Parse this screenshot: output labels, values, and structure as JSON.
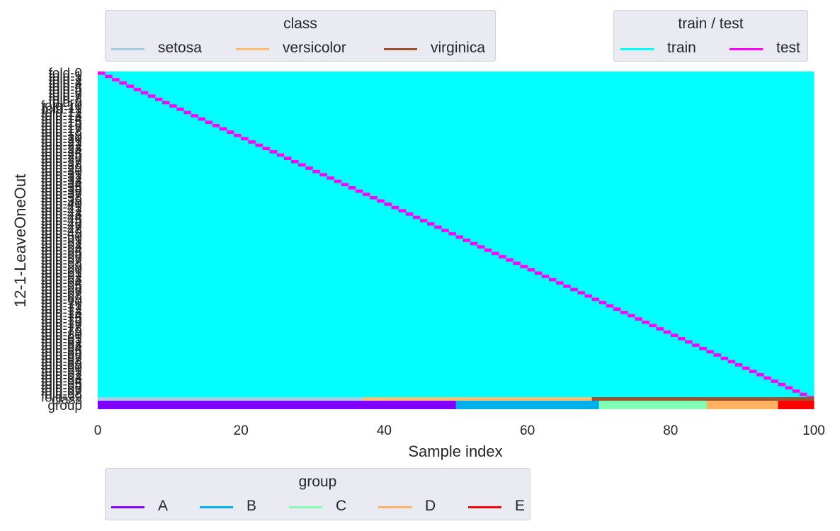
{
  "chart_data": {
    "type": "heatmap",
    "title": "",
    "xlabel": "Sample index",
    "ylabel": "12-1-LeaveOneOut",
    "xlim": [
      0,
      100
    ],
    "x_ticks": [
      0,
      20,
      40,
      60,
      80,
      100
    ],
    "grid": false,
    "n_samples": 100,
    "folds": {
      "count": 100,
      "label_prefix": "fold-",
      "test_index_per_fold": "fold i tests sample i (one sample left out per fold)",
      "colors": {
        "train": "#00ffff",
        "test": "#ff00ff"
      }
    },
    "bottom_rows": [
      "class",
      "group"
    ],
    "class_segments": [
      {
        "name": "setosa",
        "start": 0,
        "end": 37,
        "color": "#a6cee3"
      },
      {
        "name": "versicolor",
        "start": 37,
        "end": 69,
        "color": "#fdbf6f"
      },
      {
        "name": "virginica",
        "start": 69,
        "end": 100,
        "color": "#a0522d"
      }
    ],
    "group_segments": [
      {
        "name": "A",
        "start": 0,
        "end": 50,
        "color": "#8000ff"
      },
      {
        "name": "B",
        "start": 50,
        "end": 70,
        "color": "#00b0ec"
      },
      {
        "name": "C",
        "start": 70,
        "end": 85,
        "color": "#80ffb4"
      },
      {
        "name": "D",
        "start": 85,
        "end": 95,
        "color": "#ffb360"
      },
      {
        "name": "E",
        "start": 95,
        "end": 100,
        "color": "#ff0000"
      }
    ],
    "legends": [
      {
        "title": "class",
        "placement": "top-left",
        "entries": [
          {
            "label": "setosa",
            "color": "#a6cee3"
          },
          {
            "label": "versicolor",
            "color": "#fdbf6f"
          },
          {
            "label": "virginica",
            "color": "#a0522d"
          }
        ]
      },
      {
        "title": "train / test",
        "placement": "top-right",
        "entries": [
          {
            "label": "train",
            "color": "#00ffff"
          },
          {
            "label": "test",
            "color": "#ff00ff"
          }
        ]
      },
      {
        "title": "group",
        "placement": "bottom-left",
        "entries": [
          {
            "label": "A",
            "color": "#8000ff"
          },
          {
            "label": "B",
            "color": "#00b0ec"
          },
          {
            "label": "C",
            "color": "#80ffb4"
          },
          {
            "label": "D",
            "color": "#ffb360"
          },
          {
            "label": "E",
            "color": "#ff0000"
          }
        ]
      }
    ]
  }
}
